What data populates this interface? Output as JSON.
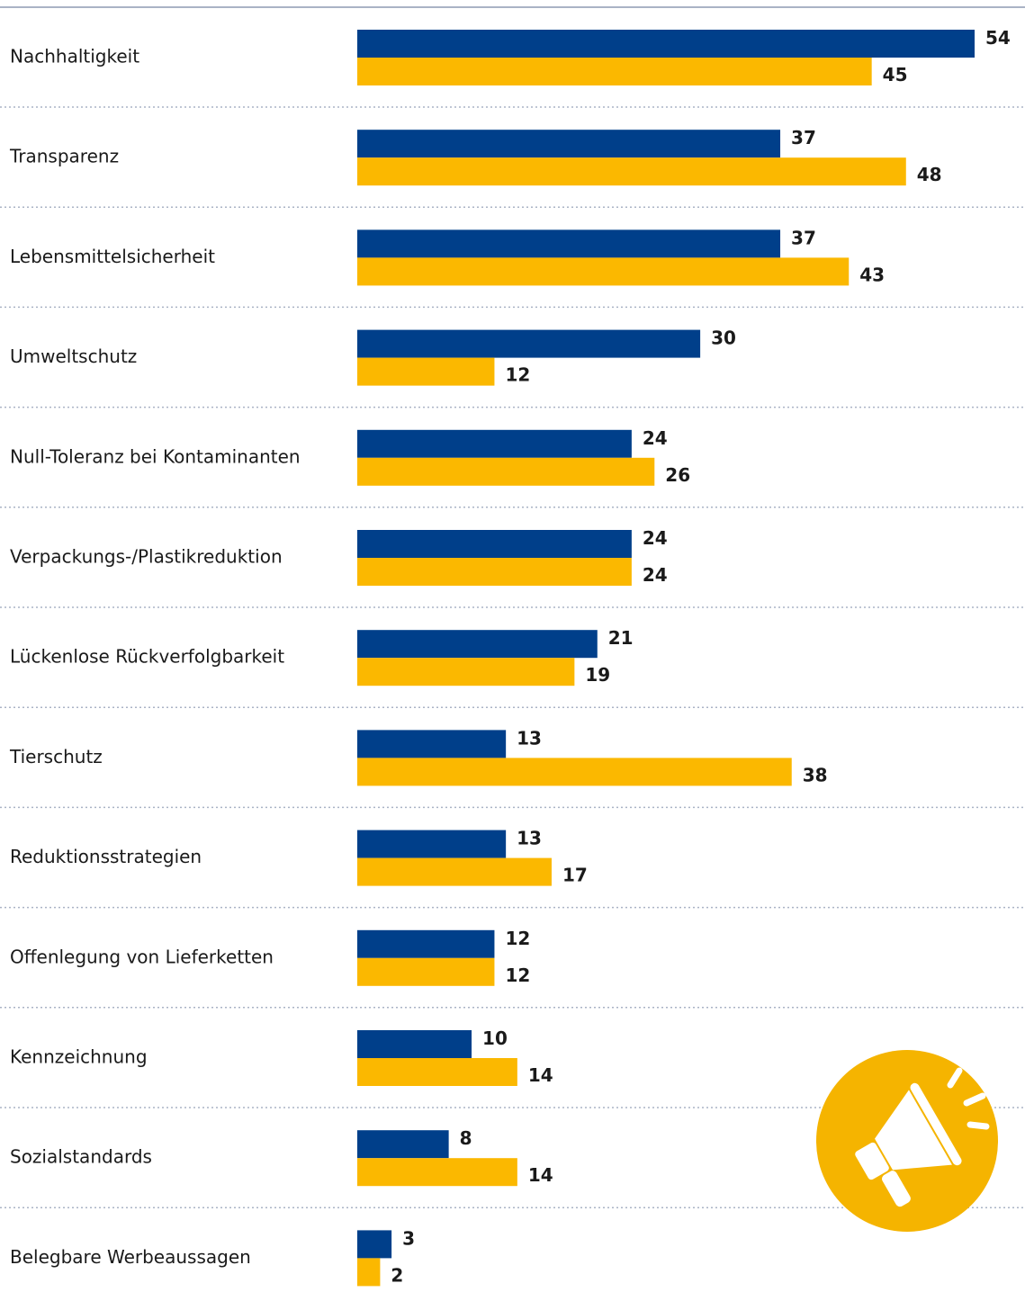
{
  "chart_data": {
    "type": "hbar",
    "categories": [
      "Nachhaltigkeit",
      "Transparenz",
      "Lebensmittelsicherheit",
      "Umweltschutz",
      "Null-Toleranz bei Kontaminanten",
      "Verpackungs-/Plastikreduktion",
      "Lückenlose Rückverfolgbarkeit",
      "Tierschutz",
      "Reduktionsstrategien",
      "Offenlegung von Lieferketten",
      "Kennzeichnung",
      "Sozialstandards",
      "Belegbare Werbeaussagen"
    ],
    "series": [
      {
        "color": "#003f8a",
        "values": [
          54,
          37,
          37,
          30,
          24,
          24,
          21,
          13,
          13,
          12,
          10,
          8,
          3
        ]
      },
      {
        "color": "#fbb800",
        "values": [
          45,
          48,
          43,
          12,
          26,
          24,
          19,
          38,
          17,
          12,
          14,
          14,
          2
        ]
      }
    ]
  }
}
